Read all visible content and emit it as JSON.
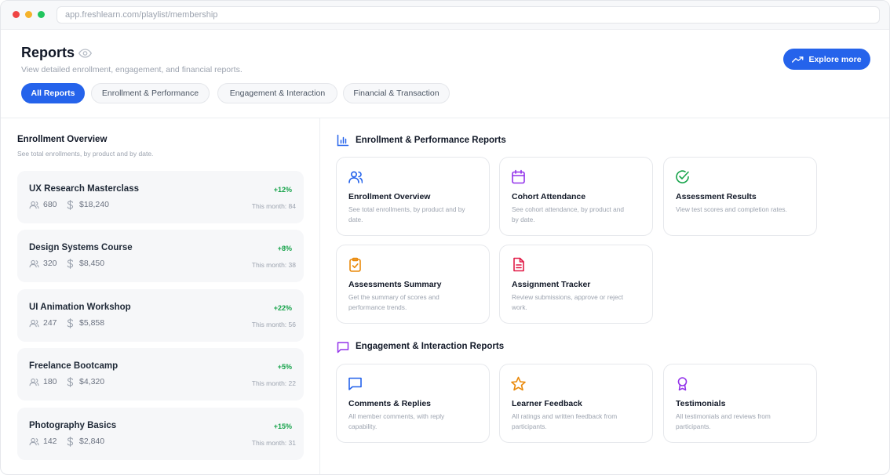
{
  "browser": {
    "url": "app.freshlearn.com/playlist/membership"
  },
  "header": {
    "title": "Reports",
    "subtitle": "View detailed enrollment, engagement, and financial reports.",
    "explore_label": "Explore more"
  },
  "tabs": [
    {
      "label": "All Reports",
      "active": true
    },
    {
      "label": "Enrollment & Performance",
      "active": false
    },
    {
      "label": "Engagement & Interaction",
      "active": false
    },
    {
      "label": "Financial & Transaction",
      "active": false
    }
  ],
  "overview": {
    "title": "Enrollment Overview",
    "subtitle": "See total enrollments, by product and by date.",
    "courses": [
      {
        "name": "UX Research Masterclass",
        "growth": "+12%",
        "users": "680",
        "revenue": "$18,240",
        "month": "This month: 84"
      },
      {
        "name": "Design Systems Course",
        "growth": "+8%",
        "users": "320",
        "revenue": "$8,450",
        "month": "This month: 38"
      },
      {
        "name": "UI Animation Workshop",
        "growth": "+22%",
        "users": "247",
        "revenue": "$5,858",
        "month": "This month: 56"
      },
      {
        "name": "Freelance Bootcamp",
        "growth": "+5%",
        "users": "180",
        "revenue": "$4,320",
        "month": "This month: 22"
      },
      {
        "name": "Photography Basics",
        "growth": "+15%",
        "users": "142",
        "revenue": "$2,840",
        "month": "This month: 31"
      }
    ]
  },
  "sections": {
    "enrollment": {
      "title": "Enrollment & Performance Reports",
      "icon": "bar-chart-icon",
      "cards": [
        {
          "title": "Enrollment Overview",
          "desc": "See total enrollments, by product and by date.",
          "icon": "users-icon",
          "color": "#2563eb"
        },
        {
          "title": "Cohort Attendance",
          "desc": "See cohort attendance, by product and by date.",
          "icon": "calendar-icon",
          "color": "#9333ea"
        },
        {
          "title": "Assessment Results",
          "desc": "View test scores and completion rates.",
          "icon": "check-circle-icon",
          "color": "#16a34a"
        },
        {
          "title": "Assessments Summary",
          "desc": "Get the summary of scores and performance trends.",
          "icon": "clipboard-icon",
          "color": "#ea8a0c"
        },
        {
          "title": "Assignment Tracker",
          "desc": "Review submissions, approve or reject work.",
          "icon": "document-icon",
          "color": "#e11d48"
        }
      ]
    },
    "engagement": {
      "title": "Engagement & Interaction Reports",
      "icon": "chat-icon",
      "cards": [
        {
          "title": "Comments & Replies",
          "desc": "All member comments, with reply capability.",
          "icon": "comment-icon",
          "color": "#2563eb"
        },
        {
          "title": "Learner Feedback",
          "desc": "All ratings and written feedback from participants.",
          "icon": "star-icon",
          "color": "#ea8a0c"
        },
        {
          "title": "Testimonials",
          "desc": "All testimonials and reviews from participants.",
          "icon": "award-icon",
          "color": "#9333ea"
        }
      ]
    }
  },
  "colors": {
    "accent": "#2563eb",
    "growth": "#16a34a"
  }
}
